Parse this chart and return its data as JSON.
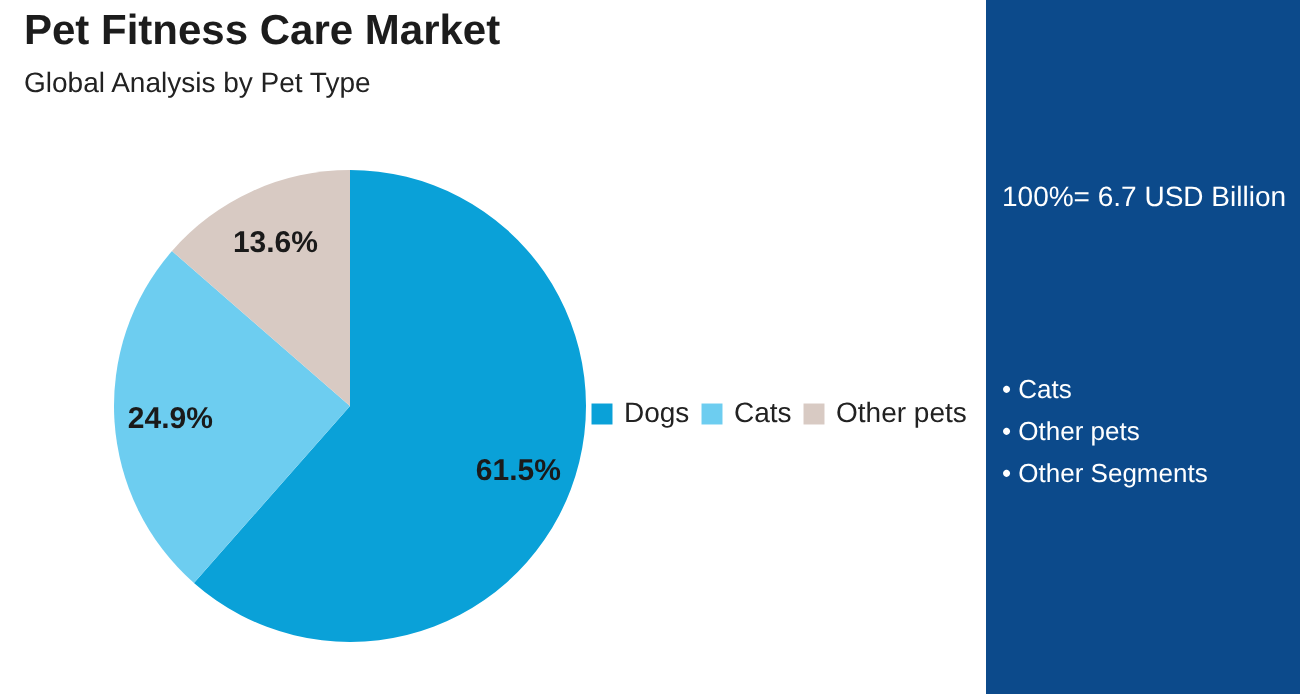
{
  "chart_data": {
    "type": "pie",
    "title": "Pet Fitness Care Market",
    "subtitle": "Global Analysis by Pet Type",
    "categories": [
      "Dogs",
      "Cats",
      "Other pets"
    ],
    "values": [
      61.5,
      24.9,
      13.6
    ],
    "colors": [
      "#0aa1d8",
      "#6dcdf0",
      "#d8cac3"
    ],
    "value_labels": [
      "61.5%",
      "24.9%",
      "13.6%"
    ],
    "legend": "right",
    "annotations": [
      "100%= 6.7 USD Billion",
      "• Cats",
      "• Other pets",
      "• Other Segments"
    ]
  }
}
